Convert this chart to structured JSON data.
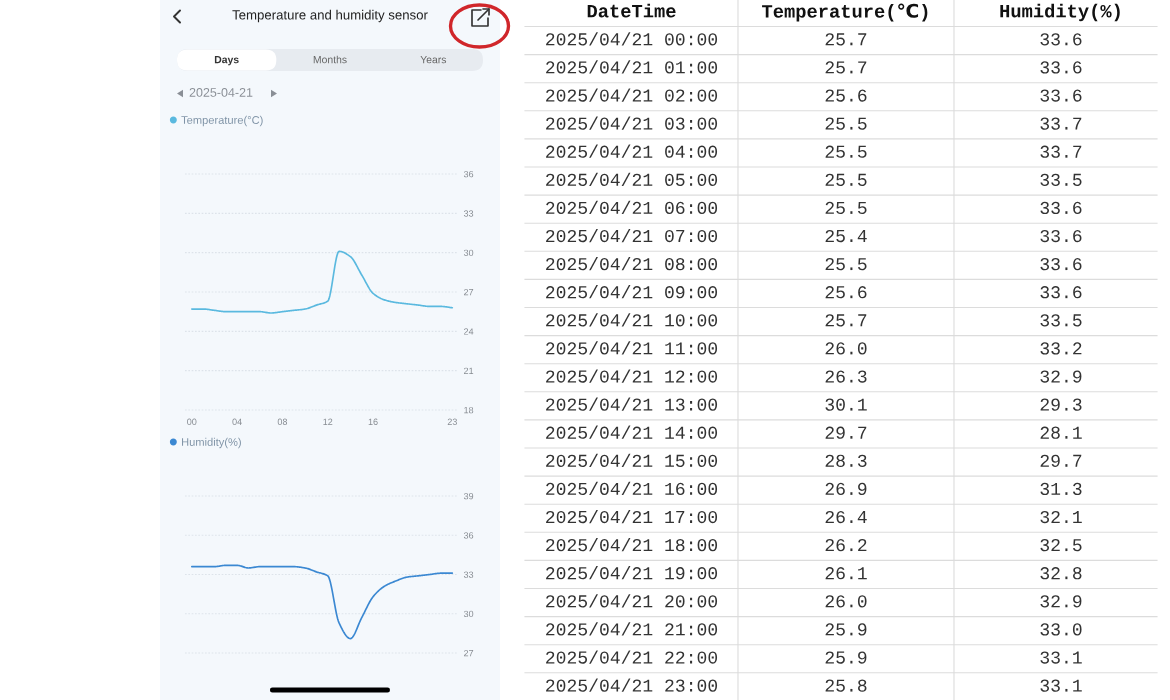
{
  "chart_data": [
    {
      "type": "line",
      "title": "Temperature and humidity sensor",
      "subtitle": "2025-04-21",
      "annotations": [
        "Days",
        "Months",
        "Years"
      ],
      "x": [
        0,
        1,
        2,
        3,
        4,
        5,
        6,
        7,
        8,
        9,
        10,
        11,
        12,
        13,
        14,
        15,
        16,
        17,
        18,
        19,
        20,
        21,
        22,
        23
      ],
      "xlim": [
        -0.6,
        23.5
      ],
      "xticks": [
        {
          "value": 0,
          "label": "00"
        },
        {
          "value": 4,
          "label": "04"
        },
        {
          "value": 8,
          "label": "08"
        },
        {
          "value": 12,
          "label": "12"
        },
        {
          "value": 16,
          "label": "16"
        },
        {
          "value": 23,
          "label": "23"
        }
      ],
      "ylim": [
        18,
        36
      ],
      "yticks": [
        18,
        21,
        24,
        27,
        30,
        33,
        36
      ],
      "grid": "y",
      "legend": "top left",
      "series": [
        {
          "name": "Temperature(°C)",
          "color": "#5ab9df",
          "values": [
            25.7,
            25.7,
            25.6,
            25.5,
            25.5,
            25.5,
            25.5,
            25.4,
            25.5,
            25.6,
            25.7,
            26.0,
            26.3,
            30.1,
            29.7,
            28.3,
            26.9,
            26.4,
            26.2,
            26.1,
            26.0,
            25.9,
            25.9,
            25.8
          ]
        }
      ]
    },
    {
      "type": "line",
      "x": [
        0,
        1,
        2,
        3,
        4,
        5,
        6,
        7,
        8,
        9,
        10,
        11,
        12,
        13,
        14,
        15,
        16,
        17,
        18,
        19,
        20,
        21,
        22,
        23
      ],
      "xlim": [
        -0.6,
        23.5
      ],
      "ylim": [
        27,
        39
      ],
      "yticks": [
        27,
        30,
        33,
        36,
        39
      ],
      "grid": "y",
      "legend": "top left",
      "tick_labels": "y",
      "series": [
        {
          "name": "Humidity(%)",
          "color": "#3b88d2",
          "values": [
            33.6,
            33.6,
            33.6,
            33.7,
            33.7,
            33.5,
            33.6,
            33.6,
            33.6,
            33.6,
            33.5,
            33.2,
            32.9,
            29.3,
            28.1,
            29.7,
            31.3,
            32.1,
            32.5,
            32.8,
            32.9,
            33.0,
            33.1,
            33.1
          ]
        }
      ]
    },
    {
      "type": "other",
      "categories": [
        "DateTime",
        "Temperature(℃)",
        "Humidity(%)"
      ],
      "cell_labels": [
        [
          "2025/04/21 00:00",
          "25.7",
          "33.6"
        ],
        [
          "2025/04/21 01:00",
          "25.7",
          "33.6"
        ],
        [
          "2025/04/21 02:00",
          "25.6",
          "33.6"
        ],
        [
          "2025/04/21 03:00",
          "25.5",
          "33.7"
        ],
        [
          "2025/04/21 04:00",
          "25.5",
          "33.7"
        ],
        [
          "2025/04/21 05:00",
          "25.5",
          "33.5"
        ],
        [
          "2025/04/21 06:00",
          "25.5",
          "33.6"
        ],
        [
          "2025/04/21 07:00",
          "25.4",
          "33.6"
        ],
        [
          "2025/04/21 08:00",
          "25.5",
          "33.6"
        ],
        [
          "2025/04/21 09:00",
          "25.6",
          "33.6"
        ],
        [
          "2025/04/21 10:00",
          "25.7",
          "33.5"
        ],
        [
          "2025/04/21 11:00",
          "26.0",
          "33.2"
        ],
        [
          "2025/04/21 12:00",
          "26.3",
          "32.9"
        ],
        [
          "2025/04/21 13:00",
          "30.1",
          "29.3"
        ],
        [
          "2025/04/21 14:00",
          "29.7",
          "28.1"
        ],
        [
          "2025/04/21 15:00",
          "28.3",
          "29.7"
        ],
        [
          "2025/04/21 16:00",
          "26.9",
          "31.3"
        ],
        [
          "2025/04/21 17:00",
          "26.4",
          "32.1"
        ],
        [
          "2025/04/21 18:00",
          "26.2",
          "32.5"
        ],
        [
          "2025/04/21 19:00",
          "26.1",
          "32.8"
        ],
        [
          "2025/04/21 20:00",
          "26.0",
          "32.9"
        ],
        [
          "2025/04/21 21:00",
          "25.9",
          "33.0"
        ],
        [
          "2025/04/21 22:00",
          "25.9",
          "33.1"
        ],
        [
          "2025/04/21 23:00",
          "25.8",
          "33.1"
        ]
      ]
    }
  ]
}
